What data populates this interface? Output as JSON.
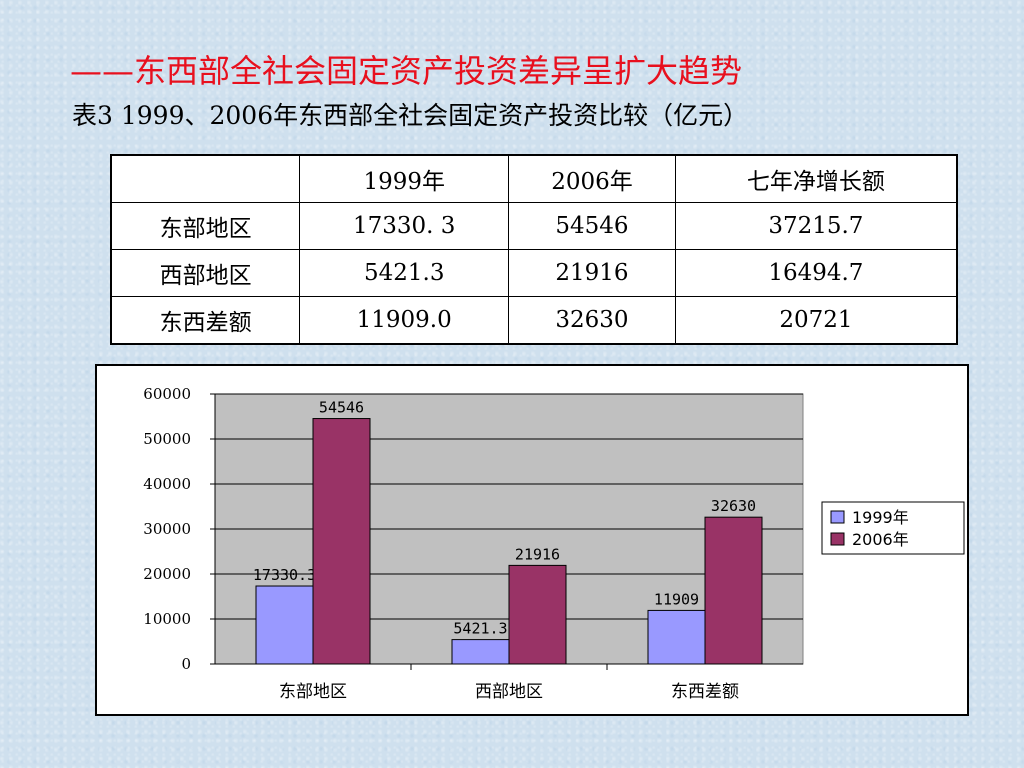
{
  "title": "——东西部全社会固定资产投资差异呈扩大趋势",
  "subtitle": "表3 1999、2006年东西部全社会固定资产投资比较（亿元）",
  "table": {
    "headers": [
      "",
      "1999年",
      "2006年",
      "七年净增长额"
    ],
    "rows": [
      [
        "东部地区",
        "17330. 3",
        "54546",
        "37215.7"
      ],
      [
        "西部地区",
        "5421.3",
        "21916",
        "16494.7"
      ],
      [
        "东西差额",
        "11909.0",
        "32630",
        "20721"
      ]
    ]
  },
  "chart_data": {
    "type": "bar",
    "categories": [
      "东部地区",
      "西部地区",
      "东西差额"
    ],
    "series": [
      {
        "name": "1999年",
        "values": [
          17330.3,
          5421.3,
          11909
        ],
        "labels": [
          "17330.3",
          "5421.3",
          "11909"
        ],
        "color": "#9999ff"
      },
      {
        "name": "2006年",
        "values": [
          54546,
          21916,
          32630
        ],
        "labels": [
          "54546",
          "21916",
          "32630"
        ],
        "color": "#993366"
      }
    ],
    "ylim": [
      0,
      60000
    ],
    "yticks": [
      0,
      10000,
      20000,
      30000,
      40000,
      50000,
      60000
    ],
    "ytick_labels": [
      "0",
      "10000",
      "20000",
      "30000",
      "40000",
      "50000",
      "60000"
    ],
    "grid": true,
    "plot_background": "#c0c0c0",
    "legend_position": "right",
    "title": "",
    "xlabel": "",
    "ylabel": ""
  }
}
